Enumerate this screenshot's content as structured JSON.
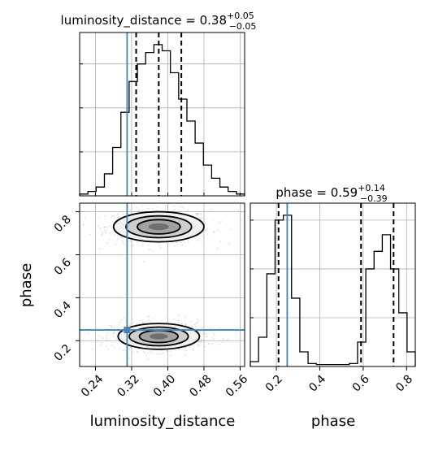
{
  "colors": {
    "truth": "#4682b4",
    "hist": "#000000",
    "grid": "#b0b0b0",
    "scatter": "#a9a9a9"
  },
  "chart_data": {
    "type": "corner",
    "parameters": [
      "luminosity_distance",
      "phase"
    ],
    "titles": [
      {
        "text": "luminosity_distance = 0.38",
        "plus": "+0.05",
        "minus": "−0.05"
      },
      {
        "text": "phase = 0.59",
        "plus": "+0.14",
        "minus": "−0.39"
      }
    ],
    "xlabels": [
      "luminosity_distance",
      "phase"
    ],
    "ylabel": "phase",
    "truths": {
      "luminosity_distance": 0.31,
      "phase": 0.25
    },
    "luminosity_distance": {
      "xlim": [
        0.205,
        0.57
      ],
      "ticks": [
        0.24,
        0.32,
        0.4,
        0.48,
        0.56
      ],
      "tick_labels": [
        "0.24",
        "0.32",
        "0.40",
        "0.48",
        "0.56"
      ],
      "quantiles": [
        0.33,
        0.38,
        0.43
      ],
      "hist_edges": [
        0.205,
        0.2233,
        0.2415,
        0.2598,
        0.278,
        0.2963,
        0.3145,
        0.3328,
        0.351,
        0.3693,
        0.3875,
        0.4058,
        0.424,
        0.4423,
        0.4605,
        0.4788,
        0.497,
        0.5153,
        0.5335,
        0.5518,
        0.57
      ],
      "hist_counts": [
        2,
        5,
        10,
        25,
        55,
        95,
        130,
        150,
        163,
        172,
        165,
        140,
        110,
        85,
        60,
        35,
        20,
        10,
        5,
        2
      ]
    },
    "phase": {
      "xlim": [
        0.08,
        0.84
      ],
      "ticks": [
        0.2,
        0.4,
        0.6,
        0.8
      ],
      "tick_labels": [
        "0.2",
        "0.4",
        "0.6",
        "0.8"
      ],
      "quantiles": [
        0.21,
        0.59,
        0.74
      ],
      "hist_edges": [
        0.08,
        0.118,
        0.156,
        0.194,
        0.232,
        0.27,
        0.308,
        0.346,
        0.384,
        0.422,
        0.46,
        0.498,
        0.536,
        0.574,
        0.612,
        0.65,
        0.688,
        0.726,
        0.764,
        0.802,
        0.84
      ],
      "hist_counts": [
        5,
        30,
        95,
        150,
        155,
        70,
        15,
        3,
        2,
        2,
        2,
        2,
        3,
        25,
        100,
        118,
        135,
        100,
        55,
        15
      ]
    },
    "joint": {
      "modes": [
        {
          "x": 0.38,
          "y": 0.73,
          "sx": 0.05,
          "sy": 0.035
        },
        {
          "x": 0.38,
          "y": 0.22,
          "sx": 0.045,
          "sy": 0.03
        }
      ],
      "ylim": [
        0.08,
        0.84
      ],
      "yticks": [
        0.2,
        0.4,
        0.6,
        0.8
      ],
      "ytick_labels": [
        "0.2",
        "0.4",
        "0.6",
        "0.8"
      ]
    }
  }
}
